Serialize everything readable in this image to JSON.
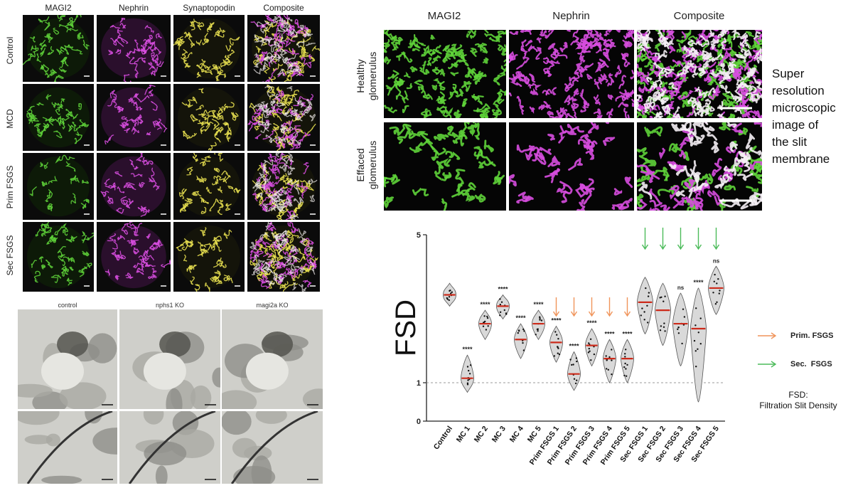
{
  "panel_a": {
    "columns": [
      "MAGI2",
      "Nephrin",
      "Synaptopodin",
      "Composite"
    ],
    "rows": [
      "Control",
      "MCD",
      "Prim FSGS",
      "Sec FSGS"
    ]
  },
  "panel_b": {
    "columns": [
      "control",
      "nphs1 KO",
      "magi2a KO"
    ]
  },
  "panel_c": {
    "columns": [
      "MAGI2",
      "Nephrin",
      "Composite"
    ],
    "rows": [
      "Healthy glomerulus",
      "Effaced glomerulus"
    ],
    "row_lines": [
      [
        "Healthy",
        "glomerulus"
      ],
      [
        "Effaced",
        "glomerulus"
      ]
    ],
    "caption_lines": [
      "Super",
      "resolution",
      "microscopic",
      "image of",
      "the slit",
      "membrane"
    ]
  },
  "colors": {
    "magi2": "#5fd43a",
    "nephrin": "#d84ee0",
    "synaptopodin": "#e8e050",
    "prim_arrow": "#f0945a",
    "sec_arrow": "#4cbb5a",
    "median": "#cc2a1a"
  },
  "chart_data": {
    "type": "violin",
    "title": "",
    "xlabel": "",
    "ylabel": "FSD",
    "y_scale": "log",
    "ylim": [
      0,
      5
    ],
    "ytick_labels": [
      "0",
      "1",
      "5"
    ],
    "reference_line": 1,
    "categories": [
      "Control",
      "MC 1",
      "MC 2",
      "MC 3",
      "MC 4",
      "MC 5",
      "Prim FSGS 1",
      "Prim FSGS 2",
      "Prim FSGS 3",
      "Prim FSGS 4",
      "Prim FSGS 5",
      "Sec FSGS 1",
      "Sec FSGS 2",
      "Sec FSGS 3",
      "Sec FSGS 4",
      "Sec FSGS 5"
    ],
    "medians": [
      2.6,
      1.05,
      1.9,
      2.3,
      1.6,
      1.9,
      1.55,
      1.1,
      1.5,
      1.3,
      1.3,
      2.4,
      2.2,
      1.9,
      1.8,
      2.8
    ],
    "significance": [
      "",
      "****",
      "****",
      "****",
      "****",
      "****",
      "****",
      "****",
      "****",
      "****",
      "****",
      "",
      "",
      "ns",
      "****",
      "ns"
    ],
    "arrows": [
      "",
      "",
      "",
      "",
      "",
      "",
      "prim",
      "prim",
      "prim",
      "prim",
      "prim",
      "sec",
      "sec",
      "sec",
      "sec",
      "sec"
    ],
    "legend": [
      {
        "label": "Prim. FSGS",
        "color": "#f0945a"
      },
      {
        "label": "Sec.  FSGS",
        "color": "#4cbb5a"
      }
    ],
    "note_lines": [
      "FSD:",
      "Filtration Slit Density"
    ]
  }
}
